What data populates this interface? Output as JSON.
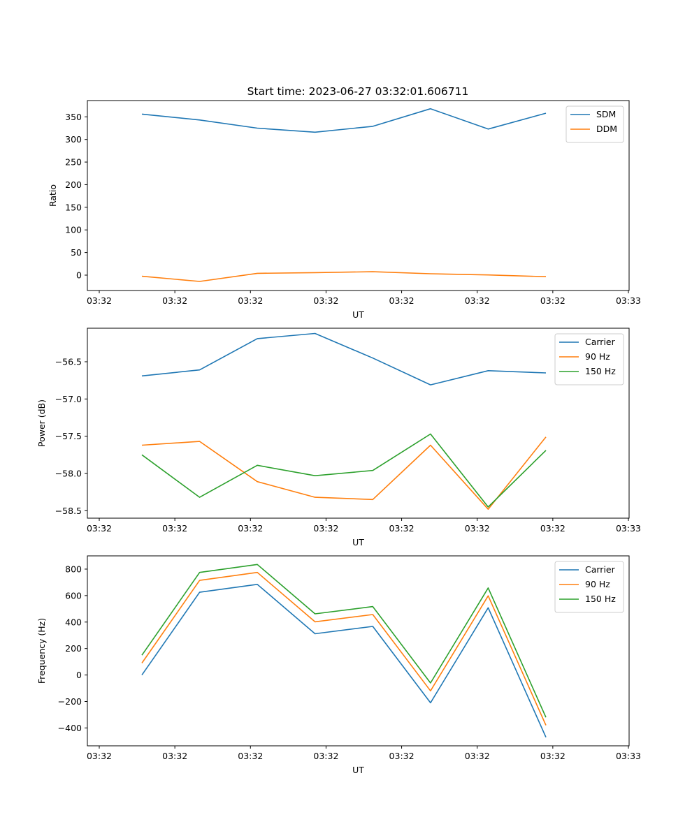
{
  "title": "Start time: 2023-06-27 03:32:01.606711",
  "chart_data": [
    {
      "type": "line",
      "title": "Start time: 2023-06-27 03:32:01.606711",
      "xlabel": "UT",
      "ylabel": "Ratio",
      "x_tick_labels": [
        "03:32",
        "03:32",
        "03:32",
        "03:32",
        "03:32",
        "03:32",
        "03:32",
        "03:33"
      ],
      "y_ticks": [
        0,
        50,
        100,
        150,
        200,
        250,
        300,
        350
      ],
      "ylim": [
        -34,
        386
      ],
      "legend_position": "upper right",
      "grid": false,
      "series": [
        {
          "name": "SDM",
          "color": "#1f77b4",
          "values": [
            356,
            343,
            325,
            316,
            329,
            368,
            323,
            358
          ]
        },
        {
          "name": "DDM",
          "color": "#ff7f0e",
          "values": [
            -2.5,
            -14,
            4,
            5.5,
            7.5,
            3,
            0.5,
            -3.5
          ]
        }
      ]
    },
    {
      "type": "line",
      "xlabel": "UT",
      "ylabel": "Power (dB)",
      "x_tick_labels": [
        "03:32",
        "03:32",
        "03:32",
        "03:32",
        "03:32",
        "03:32",
        "03:32",
        "03:33"
      ],
      "y_ticks": [
        -58.5,
        -58.0,
        -57.5,
        -57.0,
        -56.5
      ],
      "y_tick_labels": [
        "−58.5",
        "−58.0",
        "−57.5",
        "−57.0",
        "−56.5"
      ],
      "ylim": [
        -58.6,
        -56.05
      ],
      "legend_position": "upper right",
      "grid": false,
      "series": [
        {
          "name": "Carrier",
          "color": "#1f77b4",
          "values": [
            -56.69,
            -56.61,
            -56.19,
            -56.12,
            -56.45,
            -56.81,
            -56.62,
            -56.65
          ]
        },
        {
          "name": "90 Hz",
          "color": "#ff7f0e",
          "values": [
            -57.62,
            -57.57,
            -58.11,
            -58.32,
            -58.35,
            -57.62,
            -58.48,
            -57.51
          ]
        },
        {
          "name": "150 Hz",
          "color": "#2ca02c",
          "values": [
            -57.75,
            -58.32,
            -57.89,
            -58.03,
            -57.96,
            -57.47,
            -58.45,
            -57.69
          ]
        }
      ]
    },
    {
      "type": "line",
      "xlabel": "UT",
      "ylabel": "Frequency (Hz)",
      "x_tick_labels": [
        "03:32",
        "03:32",
        "03:32",
        "03:32",
        "03:32",
        "03:32",
        "03:32",
        "03:33"
      ],
      "y_ticks": [
        -400,
        -200,
        0,
        200,
        400,
        600,
        800
      ],
      "y_tick_labels": [
        "−400",
        "−200",
        "0",
        "200",
        "400",
        "600",
        "800"
      ],
      "ylim": [
        -535,
        900
      ],
      "legend_position": "upper right",
      "grid": false,
      "series": [
        {
          "name": "Carrier",
          "color": "#1f77b4",
          "values": [
            0,
            625,
            685,
            312,
            367,
            -210,
            508,
            -470
          ]
        },
        {
          "name": "90 Hz",
          "color": "#ff7f0e",
          "values": [
            90,
            715,
            775,
            402,
            457,
            -120,
            598,
            -380
          ]
        },
        {
          "name": "150 Hz",
          "color": "#2ca02c",
          "values": [
            150,
            775,
            835,
            462,
            517,
            -60,
            658,
            -320
          ]
        }
      ]
    }
  ]
}
